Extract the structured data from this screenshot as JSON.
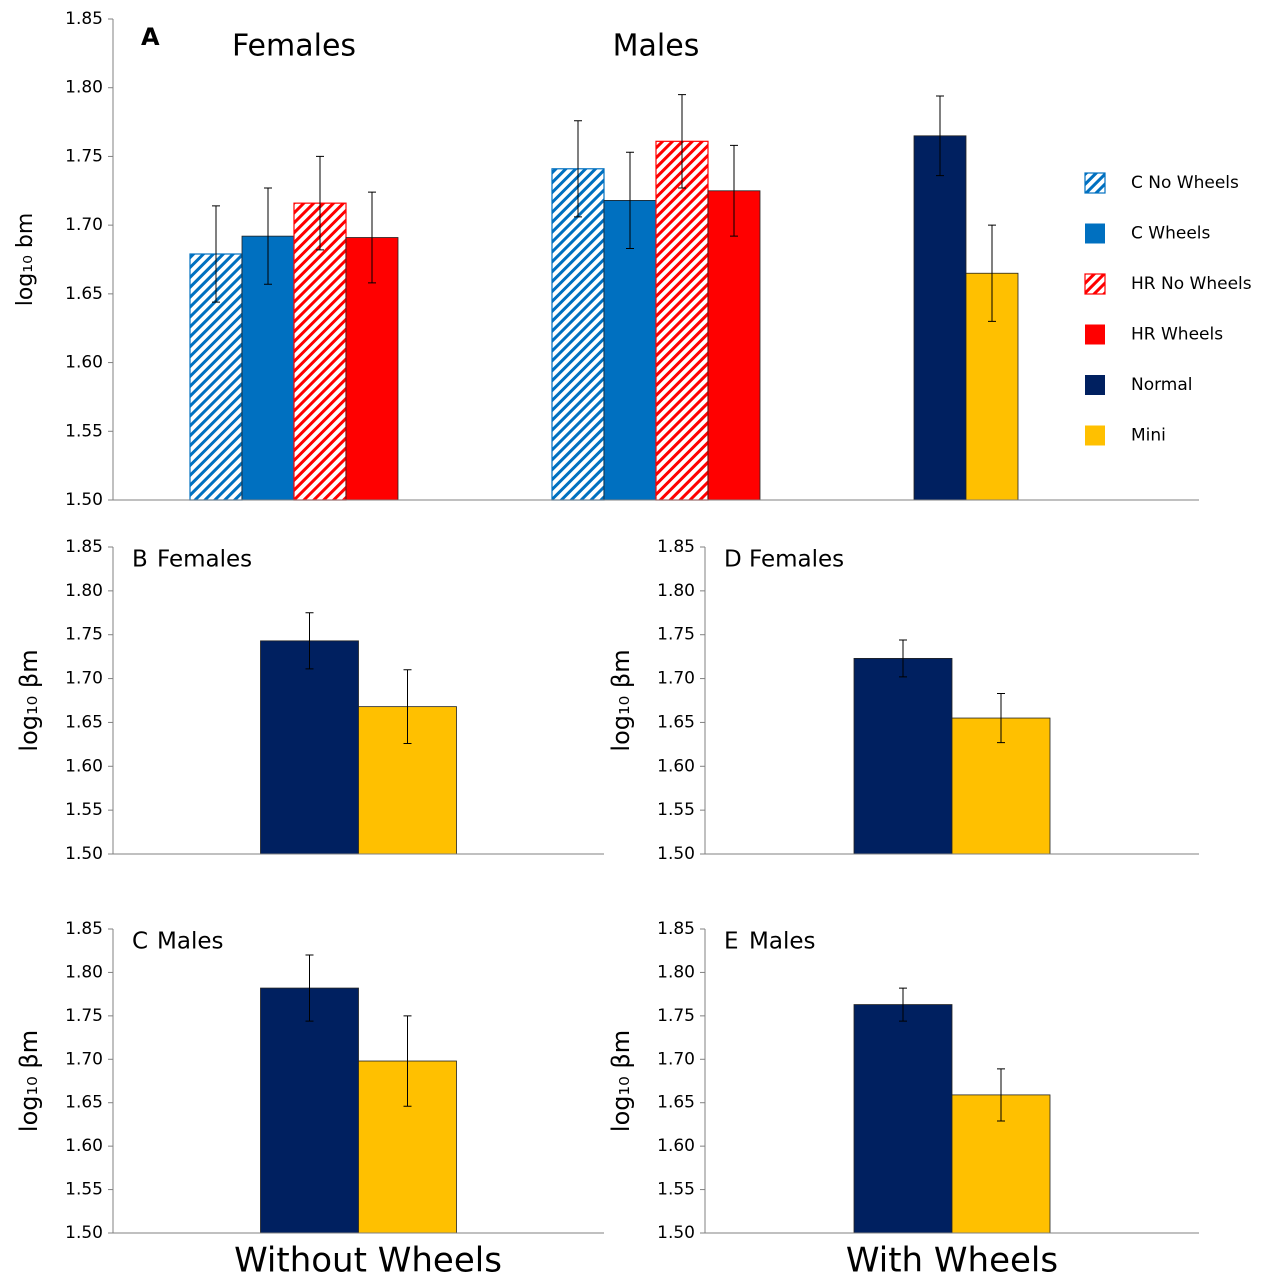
{
  "chart_data": [
    {
      "type": "bar",
      "panel": "A",
      "ylabel": "log₁₀ bm",
      "categories": [
        "Females",
        "Males",
        null
      ],
      "ylim": [
        1.5,
        1.85
      ],
      "yticks": [
        {
          "value": 1.5,
          "label": "1.50"
        },
        {
          "value": 1.55,
          "label": "1.55"
        },
        {
          "value": 1.6,
          "label": "1.60"
        },
        {
          "value": 1.65,
          "label": "1.65"
        },
        {
          "value": 1.7,
          "label": "1.70"
        },
        {
          "value": 1.75,
          "label": "1.75"
        },
        {
          "value": 1.8,
          "label": "1.80"
        },
        {
          "value": 1.85,
          "label": "1.85"
        }
      ],
      "legend": "right",
      "series": [
        {
          "name": "C No Wheels",
          "color": "#0070c0",
          "hatch": true,
          "values": [
            1.679,
            1.741,
            null
          ],
          "errors": [
            0.035,
            0.035,
            null
          ]
        },
        {
          "name": "C Wheels",
          "color": "#0070c0",
          "hatch": false,
          "values": [
            1.692,
            1.718,
            null
          ],
          "errors": [
            0.035,
            0.035,
            null
          ]
        },
        {
          "name": "HR No Wheels",
          "color": "#ff0000",
          "hatch": true,
          "values": [
            1.716,
            1.761,
            null
          ],
          "errors": [
            0.034,
            0.034,
            null
          ]
        },
        {
          "name": "HR Wheels",
          "color": "#ff0000",
          "hatch": false,
          "values": [
            1.691,
            1.725,
            null
          ],
          "errors": [
            0.033,
            0.033,
            null
          ]
        },
        {
          "name": "Normal",
          "color": "#002060",
          "hatch": false,
          "values": [
            null,
            null,
            1.765
          ],
          "errors": [
            null,
            null,
            0.029
          ]
        },
        {
          "name": "Mini",
          "color": "#ffc000",
          "hatch": false,
          "values": [
            null,
            null,
            1.665
          ],
          "errors": [
            null,
            null,
            0.035
          ]
        }
      ]
    },
    {
      "type": "bar",
      "panel": "B",
      "title": "Females",
      "ylabel": "log₁₀ βm",
      "categories": [
        null
      ],
      "ylim": [
        1.5,
        1.85
      ],
      "yticks": [
        {
          "value": 1.5,
          "label": "1.50"
        },
        {
          "value": 1.55,
          "label": "1.55"
        },
        {
          "value": 1.6,
          "label": "1.60"
        },
        {
          "value": 1.65,
          "label": "1.65"
        },
        {
          "value": 1.7,
          "label": "1.70"
        },
        {
          "value": 1.75,
          "label": "1.75"
        },
        {
          "value": 1.8,
          "label": "1.80"
        },
        {
          "value": 1.85,
          "label": "1.85"
        }
      ],
      "series": [
        {
          "color": "#002060",
          "values": [
            1.743
          ],
          "errors": [
            0.032
          ]
        },
        {
          "color": "#ffc000",
          "values": [
            1.668
          ],
          "errors": [
            0.042
          ]
        }
      ]
    },
    {
      "type": "bar",
      "panel": "C",
      "title": "Males",
      "ylabel": "log₁₀ βm",
      "categories": [
        null
      ],
      "ylim": [
        1.5,
        1.85
      ],
      "yticks": [
        {
          "value": 1.5,
          "label": "1.50"
        },
        {
          "value": 1.55,
          "label": "1.55"
        },
        {
          "value": 1.6,
          "label": "1.60"
        },
        {
          "value": 1.65,
          "label": "1.65"
        },
        {
          "value": 1.7,
          "label": "1.70"
        },
        {
          "value": 1.75,
          "label": "1.75"
        },
        {
          "value": 1.8,
          "label": "1.80"
        },
        {
          "value": 1.85,
          "label": "1.85"
        }
      ],
      "series": [
        {
          "color": "#002060",
          "values": [
            1.782
          ],
          "errors": [
            0.038
          ]
        },
        {
          "color": "#ffc000",
          "values": [
            1.698
          ],
          "errors": [
            0.052
          ]
        }
      ]
    },
    {
      "type": "bar",
      "panel": "D",
      "title": "Females",
      "ylabel": "log₁₀ βm",
      "categories": [
        null
      ],
      "ylim": [
        1.5,
        1.85
      ],
      "yticks": [
        {
          "value": 1.5,
          "label": "1.50"
        },
        {
          "value": 1.55,
          "label": "1.55"
        },
        {
          "value": 1.6,
          "label": "1.60"
        },
        {
          "value": 1.65,
          "label": "1.65"
        },
        {
          "value": 1.7,
          "label": "1.70"
        },
        {
          "value": 1.75,
          "label": "1.75"
        },
        {
          "value": 1.8,
          "label": "1.80"
        },
        {
          "value": 1.85,
          "label": "1.85"
        }
      ],
      "series": [
        {
          "color": "#002060",
          "values": [
            1.723
          ],
          "errors": [
            0.021
          ]
        },
        {
          "color": "#ffc000",
          "values": [
            1.655
          ],
          "errors": [
            0.028
          ]
        }
      ]
    },
    {
      "type": "bar",
      "panel": "E",
      "title": "Males",
      "ylabel": "log₁₀ βm",
      "categories": [
        null
      ],
      "ylim": [
        1.5,
        1.85
      ],
      "yticks": [
        {
          "value": 1.5,
          "label": "1.50"
        },
        {
          "value": 1.55,
          "label": "1.55"
        },
        {
          "value": 1.6,
          "label": "1.60"
        },
        {
          "value": 1.65,
          "label": "1.65"
        },
        {
          "value": 1.7,
          "label": "1.70"
        },
        {
          "value": 1.75,
          "label": "1.75"
        },
        {
          "value": 1.8,
          "label": "1.80"
        },
        {
          "value": 1.85,
          "label": "1.85"
        }
      ],
      "series": [
        {
          "color": "#002060",
          "values": [
            1.763
          ],
          "errors": [
            0.019
          ]
        },
        {
          "color": "#ffc000",
          "values": [
            1.659
          ],
          "errors": [
            0.03
          ]
        }
      ]
    }
  ],
  "column_labels": [
    "Without Wheels",
    "With Wheels"
  ]
}
